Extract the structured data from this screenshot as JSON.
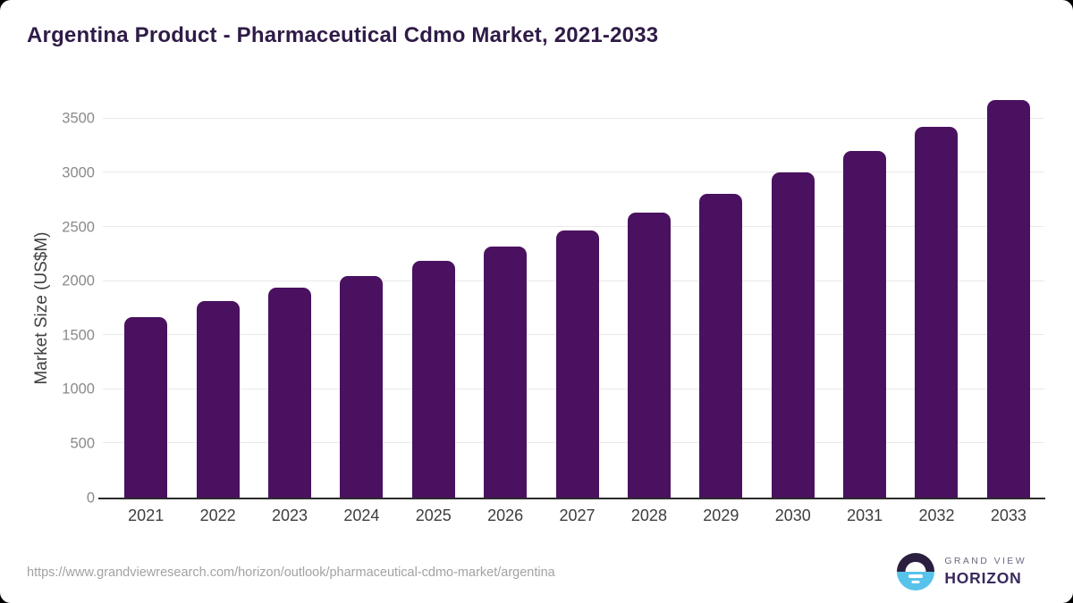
{
  "chart_data": {
    "type": "bar",
    "title": "Argentina Product - Pharmaceutical Cdmo Market, 2021-2033",
    "categories": [
      "2021",
      "2022",
      "2023",
      "2024",
      "2025",
      "2026",
      "2027",
      "2028",
      "2029",
      "2030",
      "2031",
      "2032",
      "2033"
    ],
    "values": [
      1667,
      1815,
      1940,
      2050,
      2183,
      2318,
      2466,
      2630,
      2810,
      3000,
      3205,
      3424,
      3672
    ],
    "xlabel": "",
    "ylabel": "Market Size (US$M)",
    "ylim": [
      0,
      3730
    ],
    "yticks": [
      0,
      500,
      1000,
      1500,
      2000,
      2500,
      3000,
      3500
    ],
    "grid": "horizontal-light",
    "legend": "none",
    "bar_color": "#4a1160"
  },
  "colors": {
    "title": "#2f1b47",
    "bar": "#4a1160",
    "gridline": "#e9e9e9",
    "axis_line": "#2b2b2b",
    "y_tick_text": "#8a8a8a",
    "x_tick_text": "#3d3d3d",
    "url_text": "#a2a2a2",
    "logo_dark": "#2a1f3e",
    "logo_blue": "#57c3eb",
    "logo_horizon_text": "#3a2a5c"
  },
  "footer": {
    "source_url": "https://www.grandviewresearch.com/horizon/outlook/pharmaceutical-cdmo-market/argentina",
    "logo": {
      "line1": "GRAND VIEW",
      "line2": "HORIZON"
    }
  }
}
